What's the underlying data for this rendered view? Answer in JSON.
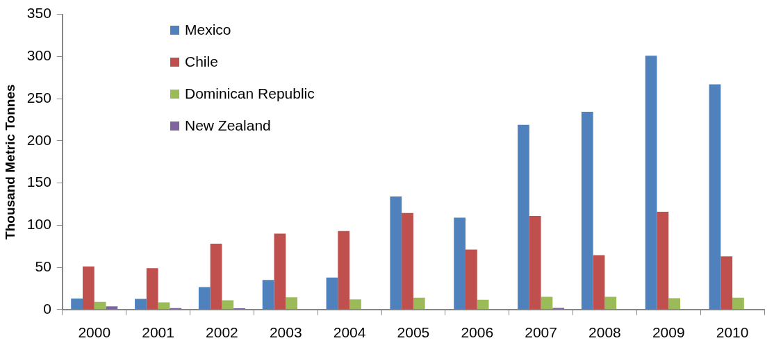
{
  "chart_data": {
    "type": "bar",
    "ylabel": "Thousand Metric Tonnes",
    "categories": [
      "2000",
      "2001",
      "2002",
      "2003",
      "2004",
      "2005",
      "2006",
      "2007",
      "2008",
      "2009",
      "2010"
    ],
    "series": [
      {
        "name": "Mexico",
        "color": "#4f81bd",
        "values": [
          13,
          12.5,
          26.5,
          35,
          38,
          134,
          109,
          219,
          234.5,
          301,
          267
        ]
      },
      {
        "name": "Chile",
        "color": "#c0504d",
        "values": [
          51,
          49,
          78,
          90,
          93,
          114.5,
          71,
          111,
          64.5,
          116,
          63
        ]
      },
      {
        "name": "Dominican Republic",
        "color": "#9bbb59",
        "values": [
          9,
          8.5,
          11,
          14.5,
          12,
          14,
          11.5,
          15,
          15,
          13.5,
          14
        ]
      },
      {
        "name": "New Zealand",
        "color": "#8064a2",
        "values": [
          3.8,
          1.6,
          1.4,
          0,
          0,
          0,
          0,
          1.9,
          0,
          0,
          0
        ]
      }
    ],
    "ylim": [
      0,
      350
    ],
    "yticks": [
      0,
      50,
      100,
      150,
      200,
      250,
      300,
      350
    ],
    "grid": false,
    "legend": "top left"
  }
}
